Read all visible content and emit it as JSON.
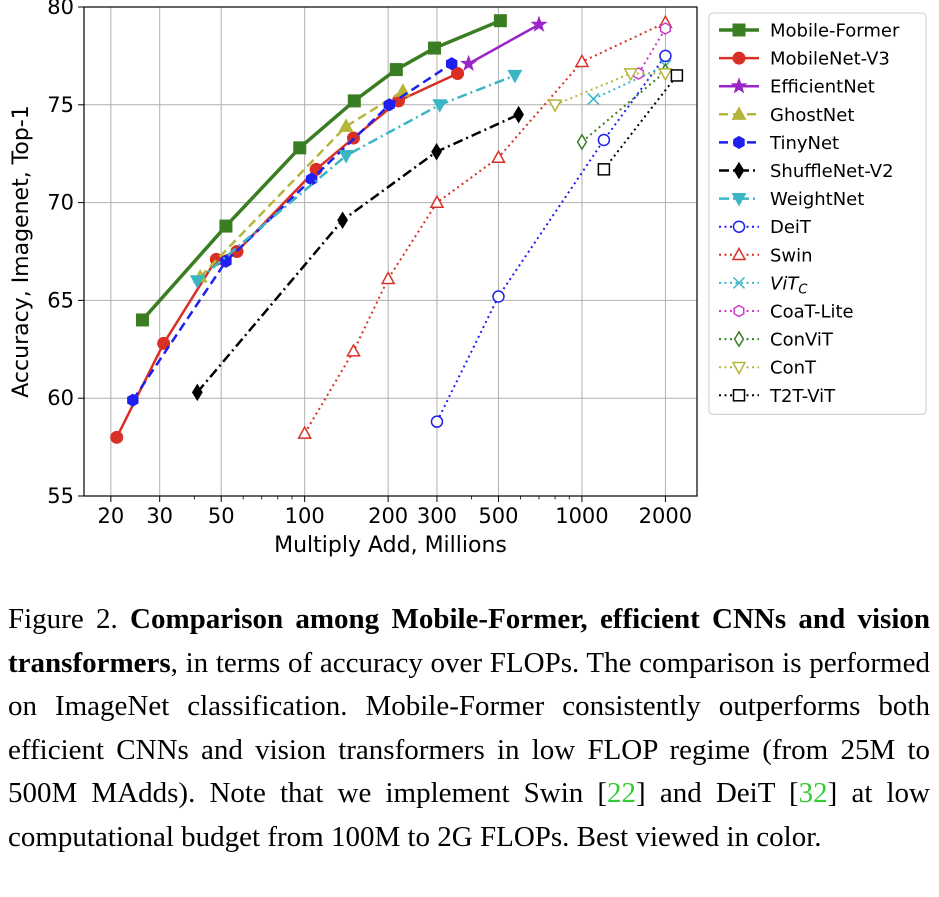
{
  "chart_data": {
    "type": "scatter",
    "xscale": "log",
    "xlabel": "Multiply Add, Millions",
    "ylabel": "Accuracy, Imagenet, Top-1",
    "xlim": [
      16,
      2600
    ],
    "ylim": [
      55,
      80
    ],
    "xticks": [
      20,
      30,
      50,
      100,
      200,
      300,
      500,
      1000,
      2000
    ],
    "xtick_labels": [
      "20",
      "30",
      "50",
      "100",
      "200",
      "300",
      "500",
      "1000",
      "2000"
    ],
    "yticks": [
      55,
      60,
      65,
      70,
      75,
      80
    ],
    "ytick_labels": [
      "55",
      "60",
      "65",
      "70",
      "75",
      "80"
    ],
    "grid": true,
    "legend_position": "right",
    "series": [
      {
        "name": "Mobile-Former",
        "color": "#3a7d22",
        "marker": "square",
        "filled": true,
        "dash": "solid",
        "width": 3.5,
        "x": [
          26,
          52,
          96,
          151,
          214,
          294,
          508
        ],
        "y": [
          64.0,
          68.8,
          72.8,
          75.2,
          76.8,
          77.9,
          79.3
        ]
      },
      {
        "name": "MobileNet-V3",
        "color": "#d93025",
        "marker": "circle",
        "filled": true,
        "dash": "solid",
        "width": 2.5,
        "x": [
          21,
          31,
          48,
          57,
          110,
          150,
          218,
          356
        ],
        "y": [
          58.0,
          62.8,
          67.1,
          67.5,
          71.7,
          73.3,
          75.2,
          76.6
        ]
      },
      {
        "name": "EfficientNet",
        "color": "#9b24c9",
        "marker": "star",
        "filled": true,
        "dash": "solid",
        "width": 2.5,
        "x": [
          390,
          700
        ],
        "y": [
          77.1,
          79.1
        ]
      },
      {
        "name": "GhostNet",
        "color": "#b5b53a",
        "marker": "triangle-up",
        "filled": true,
        "dash": "dashed",
        "width": 2.5,
        "x": [
          42,
          141,
          226
        ],
        "y": [
          66.2,
          73.9,
          75.7
        ]
      },
      {
        "name": "TinyNet",
        "color": "#1f1ff0",
        "marker": "hexagon",
        "filled": true,
        "dash": "dashed",
        "width": 2.5,
        "x": [
          24,
          52,
          106,
          202,
          339
        ],
        "y": [
          59.9,
          67.0,
          71.2,
          75.0,
          77.1
        ]
      },
      {
        "name": "ShuffleNet-V2",
        "color": "#000000",
        "marker": "diamond",
        "filled": true,
        "dash": "dashdot",
        "width": 2.5,
        "x": [
          41,
          137,
          299,
          591
        ],
        "y": [
          60.3,
          69.1,
          72.6,
          74.5
        ]
      },
      {
        "name": "WeightNet",
        "color": "#3bb6c4",
        "marker": "triangle-down",
        "filled": true,
        "dash": "dashdot",
        "width": 2.5,
        "x": [
          41,
          141,
          307,
          573
        ],
        "y": [
          66.0,
          72.4,
          75.0,
          76.5
        ]
      },
      {
        "name": "DeiT",
        "color": "#1f1ff0",
        "marker": "circle",
        "filled": false,
        "dash": "dotted",
        "width": 2,
        "x": [
          300,
          500,
          1200,
          2000
        ],
        "y": [
          58.8,
          65.2,
          73.2,
          77.5
        ]
      },
      {
        "name": "Swin",
        "color": "#d93025",
        "marker": "triangle-up",
        "filled": false,
        "dash": "dotted",
        "width": 2,
        "x": [
          100,
          150,
          200,
          300,
          500,
          1000,
          2000
        ],
        "y": [
          58.2,
          62.4,
          66.1,
          70.0,
          72.3,
          77.2,
          79.2
        ]
      },
      {
        "name": "ViTC",
        "label_main": "ViT",
        "label_sub": "C",
        "color": "#3bb6c4",
        "marker": "x",
        "filled": false,
        "dash": "dotted",
        "width": 2,
        "x": [
          1100,
          2000
        ],
        "y": [
          75.3,
          77.0
        ]
      },
      {
        "name": "CoaT-Lite",
        "color": "#c93bc9",
        "marker": "hexagon",
        "filled": false,
        "dash": "dotted",
        "width": 2,
        "x": [
          1600,
          2000
        ],
        "y": [
          76.6,
          78.9
        ]
      },
      {
        "name": "ConViT",
        "color": "#3a7d22",
        "marker": "diamond",
        "filled": false,
        "dash": "dotted",
        "width": 2,
        "x": [
          1000,
          2000
        ],
        "y": [
          73.1,
          76.7
        ]
      },
      {
        "name": "ConT",
        "color": "#b5b53a",
        "marker": "triangle-down",
        "filled": false,
        "dash": "dotted",
        "width": 2,
        "x": [
          800,
          1500,
          2000
        ],
        "y": [
          75.0,
          76.6,
          76.6
        ]
      },
      {
        "name": "T2T-ViT",
        "color": "#000000",
        "marker": "square",
        "filled": false,
        "dash": "dotted",
        "width": 2,
        "x": [
          1200,
          2200
        ],
        "y": [
          71.7,
          76.5
        ]
      }
    ]
  },
  "caption": {
    "figure_label": "Figure 2.",
    "title_bold": "Comparison among Mobile-Former, efficient CNNs and vision transformers",
    "text_1": ", in terms of accuracy over FLOPs. The comparison is performed on ImageNet classification.  Mobile-Former consistently outperforms both efficient CNNs and vision transformers in low FLOP regime (from 25M to 500M MAdds). Note that we implement Swin [",
    "cite_1": "22",
    "text_2": "] and DeiT [",
    "cite_2": "32",
    "text_3": "] at low computational budget from 100M to 2G FLOPs. Best viewed in color."
  }
}
